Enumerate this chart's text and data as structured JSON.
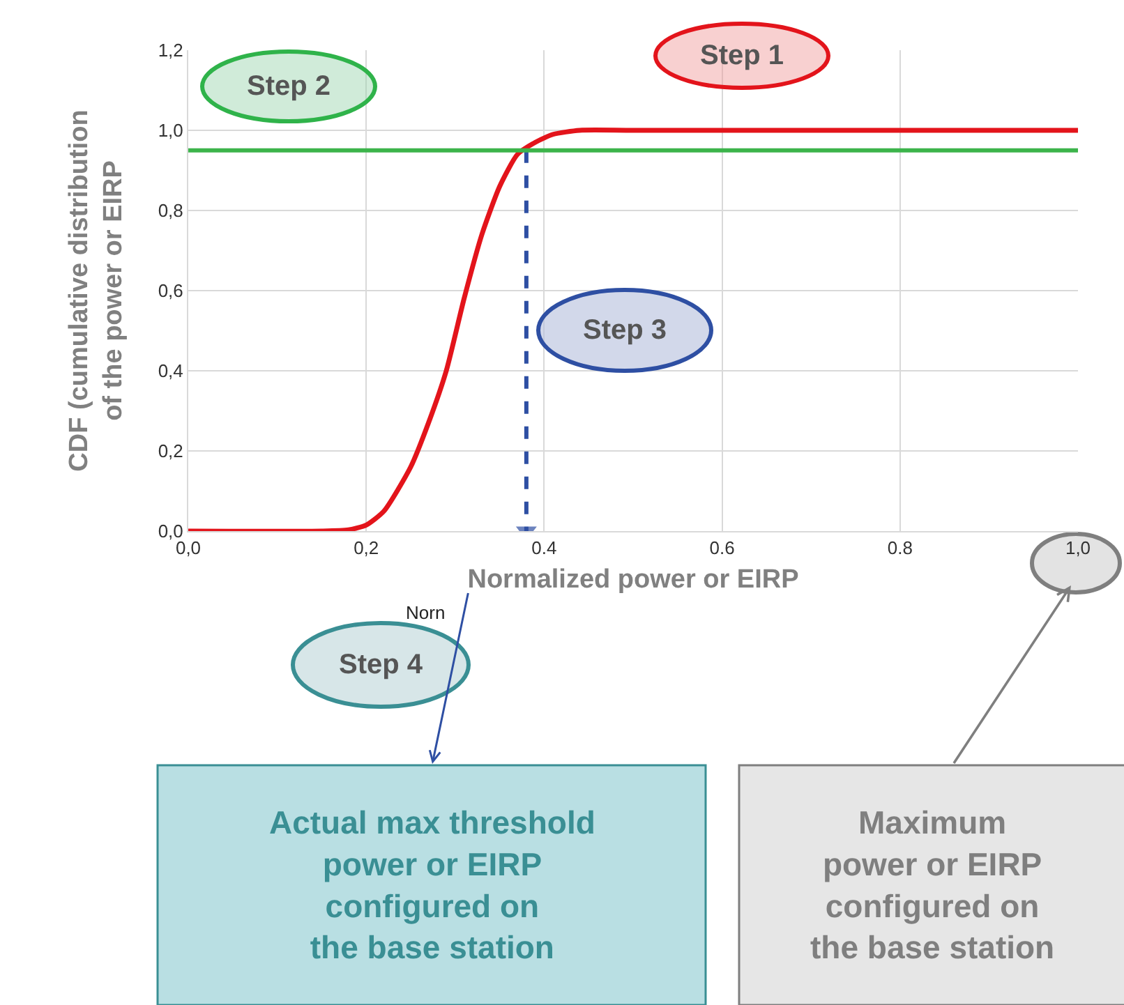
{
  "chart_data": {
    "type": "line",
    "xlabel": "Normalized power or EIRP",
    "ylabel": "CDF (cumulative distribution\nof the power or EIRP",
    "xlim": [
      0,
      1
    ],
    "ylim": [
      0,
      1.2
    ],
    "xticks": [
      {
        "value": 0,
        "label": "0,0"
      },
      {
        "value": 0.2,
        "label": "0,2"
      },
      {
        "value": 0.4,
        "label": "0.4"
      },
      {
        "value": 0.6,
        "label": "0.6"
      },
      {
        "value": 0.8,
        "label": "0.8"
      },
      {
        "value": 1.0,
        "label": "1,0"
      }
    ],
    "yticks": [
      {
        "value": 0,
        "label": "0,0"
      },
      {
        "value": 0.2,
        "label": "0,2"
      },
      {
        "value": 0.4,
        "label": "0,4"
      },
      {
        "value": 0.6,
        "label": "0,6"
      },
      {
        "value": 0.8,
        "label": "0,8"
      },
      {
        "value": 1.0,
        "label": "1,0"
      },
      {
        "value": 1.2,
        "label": "1,2"
      }
    ],
    "grid": true,
    "legend": false,
    "series": [
      {
        "color": "#e3141b",
        "x": [
          0,
          0.15,
          0.18,
          0.2,
          0.22,
          0.25,
          0.27,
          0.29,
          0.31,
          0.33,
          0.35,
          0.37,
          0.39,
          0.41,
          0.44,
          0.5,
          1.0
        ],
        "values": [
          0,
          0,
          0.003,
          0.015,
          0.05,
          0.16,
          0.27,
          0.4,
          0.58,
          0.74,
          0.86,
          0.94,
          0.97,
          0.99,
          1.0,
          1.0,
          1.0
        ]
      },
      {
        "color": "#2e4fa3",
        "line_style": "dashed",
        "x": [
          0.38,
          0.38
        ],
        "values": [
          0.95,
          0
        ]
      }
    ],
    "ref_lines": [
      {
        "axis": "y",
        "value": 0.95,
        "color": "#3cb44b"
      }
    ],
    "annotations": [
      "Step 1",
      "Step 2",
      "Step 3",
      "Step 4",
      "Norn",
      "Actual max threshold\npower or EIRP\nconfigured on\nthe base station",
      "Maximum\npower or EIRP\nconfigured on\nthe base station"
    ]
  }
}
